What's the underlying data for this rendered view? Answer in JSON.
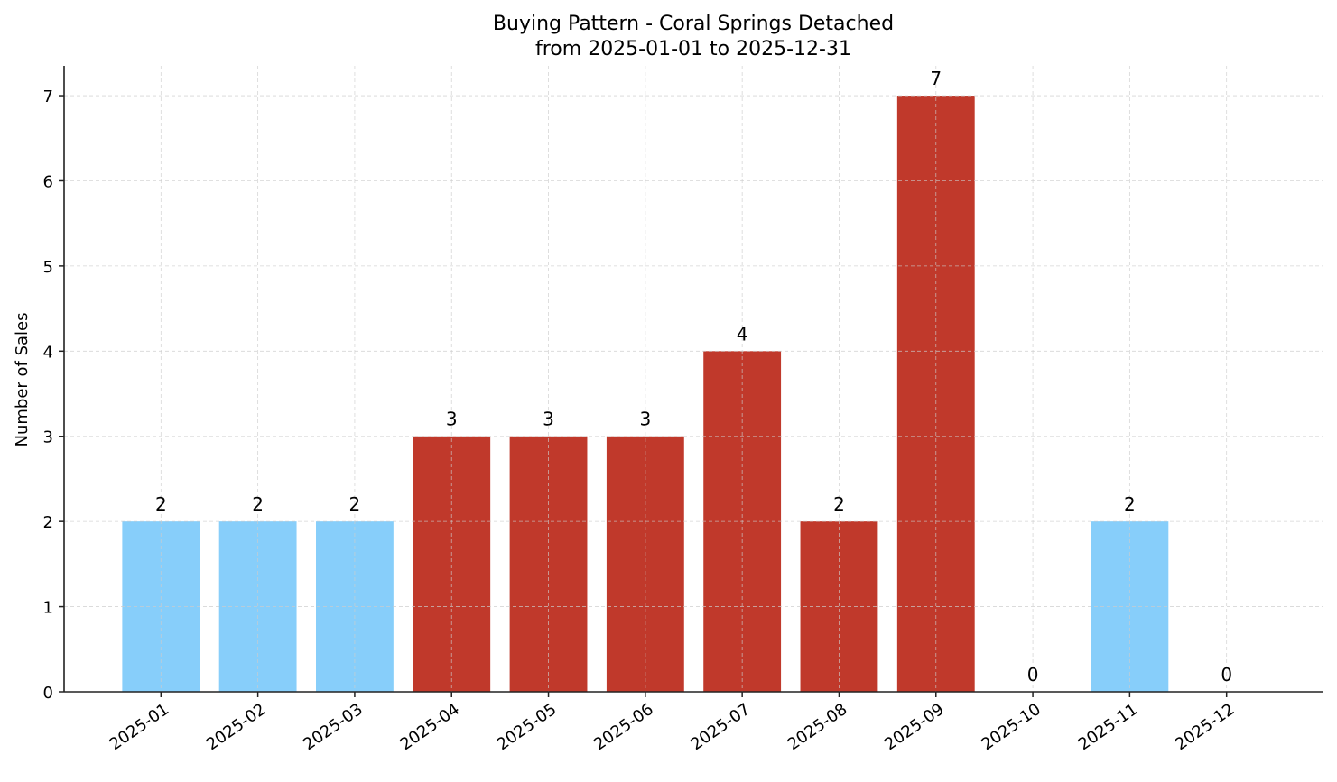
{
  "chart_data": {
    "type": "bar",
    "title": "Buying Pattern - Coral Springs Detached",
    "subtitle": "from 2025-01-01 to 2025-12-31",
    "xlabel": "",
    "ylabel": "Number of Sales",
    "categories": [
      "2025-01",
      "2025-02",
      "2025-03",
      "2025-04",
      "2025-05",
      "2025-06",
      "2025-07",
      "2025-08",
      "2025-09",
      "2025-10",
      "2025-11",
      "2025-12"
    ],
    "values": [
      2,
      2,
      2,
      3,
      3,
      3,
      4,
      2,
      7,
      0,
      2,
      0
    ],
    "bar_colors": [
      "#87CEFA",
      "#87CEFA",
      "#87CEFA",
      "#C0392B",
      "#C0392B",
      "#C0392B",
      "#C0392B",
      "#C0392B",
      "#C0392B",
      "#C0392B",
      "#87CEFA",
      "#C0392B"
    ],
    "yticks": [
      0,
      1,
      2,
      3,
      4,
      5,
      6,
      7
    ],
    "ylim": [
      0,
      7.35
    ],
    "grid": true,
    "data_labels": true
  }
}
